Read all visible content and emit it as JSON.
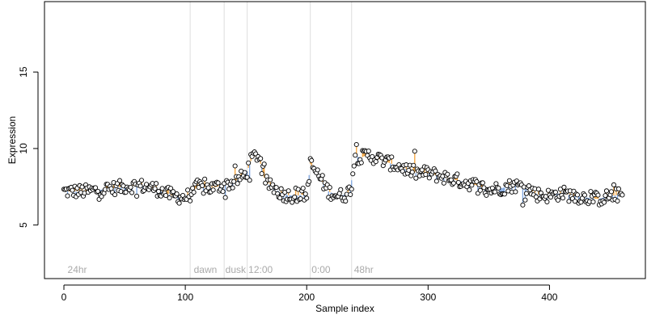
{
  "chart_data": {
    "type": "scatter",
    "title": "",
    "xlabel": "Sample index",
    "ylabel": "Expression",
    "xlim": [
      -16,
      479
    ],
    "ylim": [
      1.5,
      19.6
    ],
    "xticks": [
      0,
      100,
      200,
      300,
      400
    ],
    "yticks": [
      5,
      10,
      15
    ],
    "grid": false,
    "legend": "none",
    "colors": {
      "point_edge": "#000000",
      "point_fill": "#ffffff",
      "stem_up": "#f4a33a",
      "stem_down": "#7ea6e0",
      "boundary_line": "#dddddd",
      "period_text": "#aaaaaa"
    },
    "boundaries": [
      104,
      132,
      151,
      203,
      237
    ],
    "period_labels": [
      {
        "x": 3,
        "text": "24hr"
      },
      {
        "x": 107,
        "text": "dawn"
      },
      {
        "x": 133,
        "text": "dusk"
      },
      {
        "x": 152,
        "text": "12:00"
      },
      {
        "x": 204,
        "text": "0:00"
      },
      {
        "x": 239,
        "text": "48hr"
      }
    ],
    "series": [
      {
        "note": "",
        "anchors": [
          [
            0,
            7.2
          ],
          [
            20,
            7.2
          ],
          [
            40,
            7.4
          ],
          [
            60,
            7.6
          ],
          [
            75,
            7.4
          ],
          [
            90,
            6.9
          ],
          [
            100,
            6.8
          ],
          [
            104,
            7.0
          ],
          [
            110,
            7.5
          ],
          [
            120,
            7.4
          ],
          [
            132,
            7.6
          ],
          [
            140,
            7.8
          ],
          [
            150,
            8.3
          ],
          [
            155,
            9.4
          ],
          [
            160,
            9.6
          ],
          [
            166,
            7.8
          ],
          [
            172,
            7.5
          ],
          [
            180,
            7.0
          ],
          [
            190,
            6.9
          ],
          [
            198,
            7.0
          ],
          [
            200,
            6.8
          ],
          [
            203,
            9.0
          ],
          [
            210,
            8.2
          ],
          [
            218,
            7.2
          ],
          [
            226,
            6.9
          ],
          [
            233,
            7.0
          ],
          [
            236,
            7.4
          ],
          [
            240,
            9.5
          ],
          [
            245,
            9.4
          ],
          [
            250,
            9.6
          ],
          [
            260,
            9.3
          ],
          [
            270,
            9.0
          ],
          [
            280,
            8.7
          ],
          [
            290,
            8.4
          ],
          [
            300,
            8.4
          ],
          [
            310,
            8.2
          ],
          [
            320,
            8.0
          ],
          [
            330,
            7.8
          ],
          [
            340,
            7.6
          ],
          [
            350,
            7.3
          ],
          [
            360,
            7.4
          ],
          [
            370,
            7.6
          ],
          [
            380,
            7.5
          ],
          [
            390,
            7.0
          ],
          [
            400,
            6.9
          ],
          [
            410,
            7.1
          ],
          [
            420,
            6.9
          ],
          [
            430,
            6.8
          ],
          [
            440,
            6.7
          ],
          [
            450,
            6.9
          ],
          [
            460,
            7.0
          ]
        ]
      }
    ]
  }
}
